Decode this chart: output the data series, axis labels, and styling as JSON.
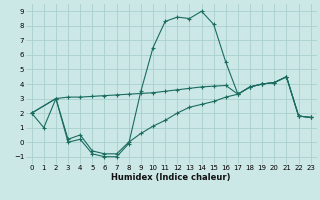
{
  "xlabel": "Humidex (Indice chaleur)",
  "bg_color": "#cce8e6",
  "grid_color": "#aacfcc",
  "line_color": "#1a6b60",
  "xlim": [
    -0.5,
    23.5
  ],
  "ylim": [
    -1.5,
    9.5
  ],
  "xticks": [
    0,
    1,
    2,
    3,
    4,
    5,
    6,
    7,
    8,
    9,
    10,
    11,
    12,
    13,
    14,
    15,
    16,
    17,
    18,
    19,
    20,
    21,
    22,
    23
  ],
  "yticks": [
    -1,
    0,
    1,
    2,
    3,
    4,
    5,
    6,
    7,
    8,
    9
  ],
  "line1_x": [
    0,
    1,
    2,
    3,
    4,
    5,
    6,
    7,
    8,
    9,
    10,
    11,
    12,
    13,
    14,
    15,
    16,
    17,
    18,
    19,
    20,
    21,
    22,
    23
  ],
  "line1_y": [
    2.0,
    1.0,
    3.0,
    0.0,
    0.2,
    -0.8,
    -1.0,
    -1.0,
    -0.1,
    3.5,
    6.5,
    8.3,
    8.6,
    8.5,
    9.0,
    8.1,
    5.5,
    3.3,
    3.8,
    4.0,
    4.1,
    4.5,
    1.8,
    1.7
  ],
  "line2_x": [
    0,
    2,
    3,
    4,
    5,
    6,
    7,
    8,
    9,
    10,
    11,
    12,
    13,
    14,
    15,
    16,
    17,
    18,
    19,
    20,
    21,
    22,
    23
  ],
  "line2_y": [
    2.0,
    3.0,
    3.1,
    3.1,
    3.15,
    3.2,
    3.25,
    3.3,
    3.35,
    3.4,
    3.5,
    3.6,
    3.7,
    3.8,
    3.85,
    3.9,
    3.3,
    3.8,
    4.0,
    4.1,
    4.5,
    1.8,
    1.7
  ],
  "line3_x": [
    0,
    2,
    3,
    4,
    5,
    6,
    7,
    8,
    9,
    10,
    11,
    12,
    13,
    14,
    15,
    16,
    17,
    18,
    19,
    20,
    21,
    22,
    23
  ],
  "line3_y": [
    2.0,
    3.0,
    0.2,
    0.5,
    -0.6,
    -0.8,
    -0.8,
    0.0,
    0.6,
    1.1,
    1.5,
    2.0,
    2.4,
    2.6,
    2.8,
    3.1,
    3.3,
    3.8,
    4.0,
    4.1,
    4.5,
    1.8,
    1.7
  ]
}
